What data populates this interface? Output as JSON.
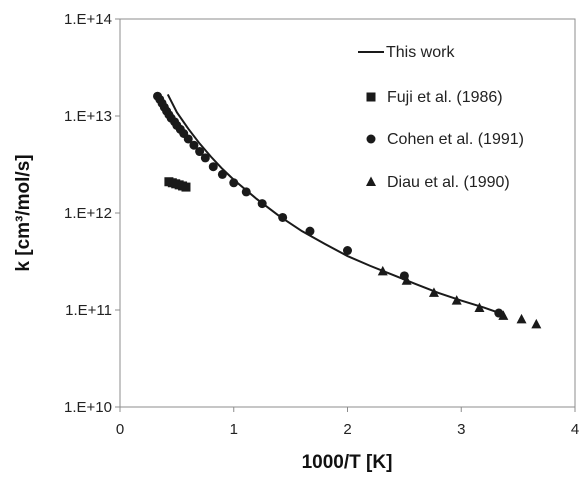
{
  "chart_data": {
    "type": "scatter",
    "title": "",
    "xlabel": "1000/T [K]",
    "ylabel": "k  [cm³/mol/s]",
    "xlim": [
      0,
      4
    ],
    "ylim": [
      10000000000,
      100000000000000
    ],
    "yscale": "log",
    "grid": false,
    "legend_position": "top-right",
    "x_ticks": [
      0,
      1,
      2,
      3,
      4
    ],
    "x_tick_labels": [
      "0",
      "1",
      "2",
      "3",
      "4"
    ],
    "y_ticks": [
      10000000000,
      100000000000,
      1000000000000,
      10000000000000,
      100000000000000
    ],
    "y_tick_labels": [
      "1.E+10",
      "1.E+11",
      "1.E+12",
      "1.E+13",
      "1.E+14"
    ],
    "series": [
      {
        "name": "This work",
        "kind": "line",
        "marker": "none",
        "color": "#1a1a1a",
        "x": [
          0.42,
          0.5,
          0.6,
          0.7,
          0.8,
          0.9,
          1.0,
          1.2,
          1.4,
          1.6,
          1.8,
          2.0,
          2.2,
          2.4,
          2.6,
          2.8,
          3.0,
          3.2,
          3.35
        ],
        "y": [
          16700000000000,
          10900000000000,
          7400000000000,
          5200000000000,
          3800000000000,
          2850000000000,
          2200000000000,
          1400000000000,
          930000000000,
          650000000000,
          480000000000,
          360000000000,
          285000000000,
          230000000000,
          185000000000,
          150000000000,
          125000000000,
          106000000000,
          92000000000
        ]
      },
      {
        "name": "Fuji et al. (1986)",
        "kind": "scatter",
        "marker": "square",
        "color": "#1a1a1a",
        "x": [
          0.43,
          0.46,
          0.49,
          0.52,
          0.55,
          0.58
        ],
        "y": [
          2100000000000,
          2050000000000,
          2000000000000,
          1950000000000,
          1900000000000,
          1850000000000
        ]
      },
      {
        "name": "Cohen et al. (1991)",
        "kind": "scatter",
        "marker": "circle",
        "color": "#1a1a1a",
        "x": [
          0.33,
          0.35,
          0.37,
          0.39,
          0.41,
          0.43,
          0.45,
          0.48,
          0.5,
          0.53,
          0.56,
          0.6,
          0.65,
          0.7,
          0.75,
          0.82,
          0.9,
          1.0,
          1.11,
          1.25,
          1.43,
          1.67,
          2.0,
          2.5,
          3.33
        ],
        "y": [
          16000000000000,
          14800000000000,
          13500000000000,
          12300000000000,
          11200000000000,
          10300000000000,
          9500000000000,
          8700000000000,
          8000000000000,
          7300000000000,
          6600000000000,
          5800000000000,
          5000000000000,
          4300000000000,
          3700000000000,
          3000000000000,
          2500000000000,
          2050000000000,
          1650000000000,
          1250000000000,
          900000000000,
          650000000000,
          410000000000,
          225000000000,
          93000000000
        ]
      },
      {
        "name": "Diau et al. (1990)",
        "kind": "scatter",
        "marker": "triangle",
        "color": "#1a1a1a",
        "x": [
          2.31,
          2.52,
          2.76,
          2.96,
          3.16,
          3.37,
          3.53,
          3.66
        ],
        "y": [
          250000000000,
          200000000000,
          150000000000,
          125000000000,
          105000000000,
          87000000000,
          80000000000,
          71000000000
        ]
      }
    ]
  }
}
